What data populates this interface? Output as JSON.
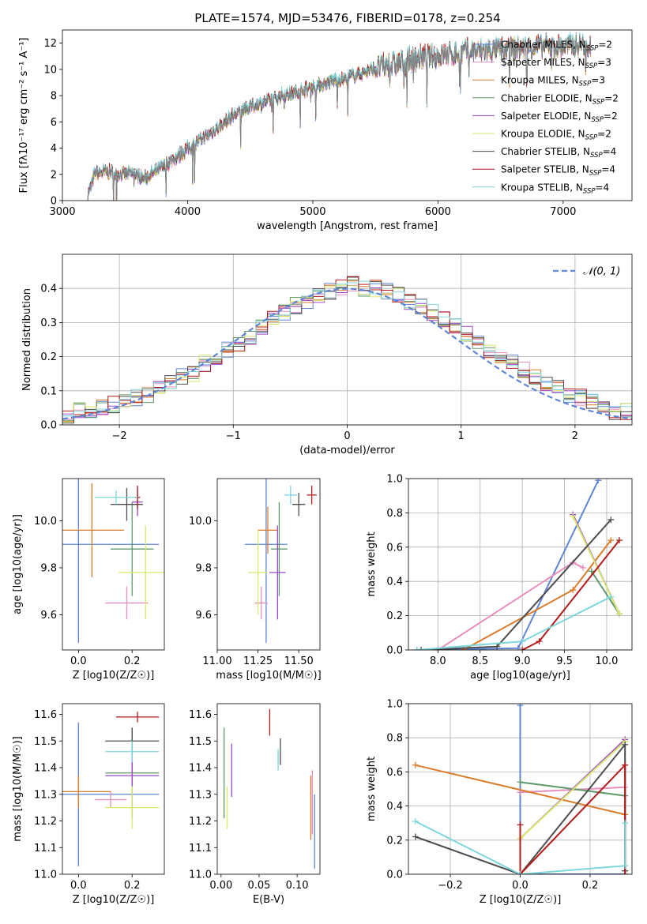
{
  "chart_data": [
    {
      "type": "line",
      "title": "PLATE=1574, MJD=53476, FIBERID=0178, z=0.254",
      "xlabel": "wavelength [Angstrom, rest frame]",
      "ylabel": "Flux [fλ10⁻¹⁷ erg cm⁻² s⁻¹ A⁻¹]",
      "xlim": [
        3000,
        7550
      ],
      "ylim": [
        0,
        13
      ],
      "xticks": [
        3000,
        4000,
        5000,
        6000,
        7000
      ],
      "yticks": [
        0,
        2,
        4,
        6,
        8,
        10,
        12
      ],
      "grid": false,
      "legend_position": "upper-right",
      "spectrum_anchor_x": [
        3200,
        3260,
        3350,
        3450,
        3550,
        3650,
        3750,
        3860,
        3950,
        4050,
        4150,
        4250,
        4350,
        4450,
        4550,
        4650,
        4750,
        4850,
        4950,
        5050,
        5150,
        5250,
        5350,
        5450,
        5550,
        5650,
        5750,
        5850,
        5950,
        6050,
        6150,
        6250,
        6350,
        6450,
        6550,
        6650,
        6750,
        6850,
        6950,
        7050,
        7150,
        7220
      ],
      "spectrum_anchor_y": [
        0.3,
        2.1,
        2.2,
        2.0,
        2.1,
        1.7,
        2.2,
        3.0,
        3.6,
        4.3,
        4.9,
        5.6,
        6.4,
        6.9,
        7.3,
        7.6,
        8.0,
        8.2,
        8.5,
        8.8,
        9.1,
        9.3,
        9.6,
        9.9,
        10.2,
        10.4,
        10.7,
        10.9,
        11.0,
        11.1,
        11.2,
        11.4,
        11.4,
        11.5,
        11.6,
        11.6,
        11.7,
        11.8,
        11.7,
        11.8,
        11.9,
        11.8
      ],
      "series": [
        {
          "name": "Chabrier MILES, N",
          "sub": "SSP",
          "suffix": "=2",
          "color": "#5f86d4"
        },
        {
          "name": "Salpeter MILES, N",
          "sub": "SSP",
          "suffix": "=3",
          "color": "#e88fbd"
        },
        {
          "name": "Kroupa MILES, N",
          "sub": "SSP",
          "suffix": "=3",
          "color": "#db7c2a"
        },
        {
          "name": "Chabrier ELODIE, N",
          "sub": "SSP",
          "suffix": "=2",
          "color": "#5f9b6a"
        },
        {
          "name": "Salpeter ELODIE, N",
          "sub": "SSP",
          "suffix": "=2",
          "color": "#9d48c9"
        },
        {
          "name": "Kroupa ELODIE, N",
          "sub": "SSP",
          "suffix": "=2",
          "color": "#d8e86a"
        },
        {
          "name": "Chabrier STELIB, N",
          "sub": "SSP",
          "suffix": "=4",
          "color": "#4d4d4d"
        },
        {
          "name": "Salpeter STELIB, N",
          "sub": "SSP",
          "suffix": "=4",
          "color": "#b31b1b"
        },
        {
          "name": "Kroupa STELIB, N",
          "sub": "SSP",
          "suffix": "=4",
          "color": "#7fd6dd"
        }
      ],
      "data_color": "#808080"
    },
    {
      "type": "bar",
      "xlabel": "(data-model)/error",
      "ylabel": "Normed distribution",
      "xlim": [
        -2.5,
        2.5
      ],
      "ylim": [
        0,
        0.5
      ],
      "xticks": [
        -2,
        -1,
        0,
        1,
        2
      ],
      "yticks": [
        0.0,
        0.1,
        0.2,
        0.3,
        0.4
      ],
      "grid": true,
      "legend_position": "upper-right",
      "legend_label": "𝒩(0, 1)",
      "gaussian": {
        "mean": 0,
        "sigma": 1,
        "color": "#5f86d4"
      },
      "bin_width": 0.1,
      "histogram_tops": [
        0.03,
        0.04,
        0.04,
        0.05,
        0.06,
        0.07,
        0.08,
        0.09,
        0.11,
        0.12,
        0.14,
        0.15,
        0.18,
        0.2,
        0.22,
        0.24,
        0.26,
        0.29,
        0.31,
        0.33,
        0.35,
        0.36,
        0.38,
        0.39,
        0.4,
        0.41,
        0.4,
        0.4,
        0.39,
        0.38,
        0.36,
        0.35,
        0.33,
        0.31,
        0.29,
        0.27,
        0.24,
        0.22,
        0.2,
        0.18,
        0.16,
        0.14,
        0.12,
        0.11,
        0.09,
        0.08,
        0.07,
        0.05,
        0.04,
        0.04
      ]
    },
    {
      "type": "scatter",
      "xlabel": "Z [log10(Z/Z☉)]",
      "ylabel": "age  [log10(age/yr)]",
      "xlim": [
        -0.06,
        0.32
      ],
      "ylim": [
        9.45,
        10.18
      ],
      "xticks": [
        0.0,
        0.2
      ],
      "yticks": [
        9.6,
        9.8,
        10.0
      ],
      "points": [
        {
          "x": 0.0,
          "y": 9.9,
          "xerr": 0.3,
          "yerr": 0.42,
          "color": "#5f86d4"
        },
        {
          "x": 0.18,
          "y": 9.65,
          "xerr": 0.08,
          "yerr": 0.07,
          "color": "#e88fbd"
        },
        {
          "x": 0.05,
          "y": 9.96,
          "xerr": 0.12,
          "yerr": 0.2,
          "color": "#db7c2a"
        },
        {
          "x": 0.2,
          "y": 9.88,
          "xerr": 0.08,
          "yerr": 0.2,
          "color": "#5f9b6a"
        },
        {
          "x": 0.22,
          "y": 10.08,
          "xerr": 0.02,
          "yerr": 0.06,
          "color": "#9d48c9"
        },
        {
          "x": 0.25,
          "y": 9.78,
          "xerr": 0.1,
          "yerr": 0.2,
          "color": "#d8e86a"
        },
        {
          "x": 0.18,
          "y": 10.07,
          "xerr": 0.06,
          "yerr": 0.07,
          "color": "#4d4d4d"
        },
        {
          "x": 0.22,
          "y": 10.1,
          "xerr": 0.01,
          "yerr": 0.05,
          "color": "#b31b1b"
        },
        {
          "x": 0.14,
          "y": 10.1,
          "xerr": 0.08,
          "yerr": 0.03,
          "color": "#7fd6dd"
        }
      ]
    },
    {
      "type": "scatter",
      "xlabel": "mass [log10(M/M☉)]",
      "ylabel": "",
      "xlim": [
        11.0,
        11.63
      ],
      "ylim": [
        9.45,
        10.18
      ],
      "xticks": [
        11.0,
        11.25,
        11.5
      ],
      "yticks": [
        9.6,
        9.8,
        10.0
      ],
      "points": [
        {
          "x": 11.3,
          "y": 9.9,
          "xerr": 0.13,
          "yerr": 0.42,
          "color": "#5f86d4"
        },
        {
          "x": 11.27,
          "y": 9.65,
          "xerr": 0.04,
          "yerr": 0.07,
          "color": "#e88fbd"
        },
        {
          "x": 11.31,
          "y": 9.96,
          "xerr": 0.06,
          "yerr": 0.1,
          "color": "#db7c2a"
        },
        {
          "x": 11.38,
          "y": 9.88,
          "xerr": 0.05,
          "yerr": 0.2,
          "color": "#5f9b6a"
        },
        {
          "x": 11.37,
          "y": 9.78,
          "xerr": 0.05,
          "yerr": 0.2,
          "color": "#9d48c9"
        },
        {
          "x": 11.25,
          "y": 9.78,
          "xerr": 0.06,
          "yerr": 0.18,
          "color": "#d8e86a"
        },
        {
          "x": 11.5,
          "y": 10.07,
          "xerr": 0.04,
          "yerr": 0.05,
          "color": "#4d4d4d"
        },
        {
          "x": 11.58,
          "y": 10.11,
          "xerr": 0.03,
          "yerr": 0.04,
          "color": "#b31b1b"
        },
        {
          "x": 11.45,
          "y": 10.11,
          "xerr": 0.04,
          "yerr": 0.04,
          "color": "#7fd6dd"
        }
      ]
    },
    {
      "type": "line",
      "xlabel": "age  [log10(age/yr)]",
      "ylabel": "mass weight",
      "xlim": [
        7.65,
        10.3
      ],
      "ylim": [
        0.0,
        1.0
      ],
      "xticks": [
        8.0,
        8.5,
        9.0,
        9.5,
        10.0
      ],
      "yticks": [
        0.0,
        0.2,
        0.4,
        0.6,
        0.8,
        1.0
      ],
      "grid": true,
      "series": [
        {
          "color": "#5f86d4",
          "x": [
            7.75,
            8.95,
            9.9
          ],
          "y": [
            0.0,
            0.01,
            0.99
          ]
        },
        {
          "color": "#e88fbd",
          "x": [
            8.0,
            9.6,
            9.72
          ],
          "y": [
            0.0,
            0.51,
            0.48
          ]
        },
        {
          "color": "#db7c2a",
          "x": [
            8.3,
            9.6,
            10.05
          ],
          "y": [
            0.0,
            0.35,
            0.64
          ]
        },
        {
          "color": "#5f9b6a",
          "x": [
            9.82,
            10.15
          ],
          "y": [
            0.46,
            0.21
          ]
        },
        {
          "color": "#9d48c9",
          "x": [
            9.6,
            10.15
          ],
          "y": [
            0.79,
            0.21
          ]
        },
        {
          "color": "#d8e86a",
          "x": [
            9.6,
            10.15
          ],
          "y": [
            0.78,
            0.21
          ]
        },
        {
          "color": "#4d4d4d",
          "x": [
            7.8,
            8.7,
            10.05
          ],
          "y": [
            0.0,
            0.02,
            0.76
          ]
        },
        {
          "color": "#b31b1b",
          "x": [
            9.0,
            9.2,
            10.15
          ],
          "y": [
            0.0,
            0.05,
            0.64
          ]
        },
        {
          "color": "#7fd6dd",
          "x": [
            7.75,
            9.0,
            10.05
          ],
          "y": [
            0.0,
            0.05,
            0.31
          ]
        }
      ]
    },
    {
      "type": "scatter",
      "xlabel": "Z [log10(Z/Z☉)]",
      "ylabel": "mass [log10(M/M☉)]",
      "xlim": [
        -0.06,
        0.32
      ],
      "ylim": [
        11.0,
        11.64
      ],
      "xticks": [
        0.0,
        0.2
      ],
      "yticks": [
        11.0,
        11.1,
        11.2,
        11.3,
        11.4,
        11.5,
        11.6
      ],
      "points": [
        {
          "x": 0.0,
          "y": 11.3,
          "xerr": 0.3,
          "yerr": 0.27,
          "color": "#5f86d4"
        },
        {
          "x": 0.12,
          "y": 11.28,
          "xerr": 0.06,
          "yerr": 0.03,
          "color": "#e88fbd"
        },
        {
          "x": 0.0,
          "y": 11.31,
          "xerr": 0.12,
          "yerr": 0.06,
          "color": "#db7c2a"
        },
        {
          "x": 0.2,
          "y": 11.38,
          "xerr": 0.1,
          "yerr": 0.17,
          "color": "#5f9b6a"
        },
        {
          "x": 0.2,
          "y": 11.37,
          "xerr": 0.1,
          "yerr": 0.12,
          "color": "#9d48c9"
        },
        {
          "x": 0.2,
          "y": 11.25,
          "xerr": 0.1,
          "yerr": 0.08,
          "color": "#d8e86a"
        },
        {
          "x": 0.2,
          "y": 11.5,
          "xerr": 0.1,
          "yerr": 0.05,
          "color": "#4d4d4d"
        },
        {
          "x": 0.22,
          "y": 11.59,
          "xerr": 0.08,
          "yerr": 0.02,
          "color": "#b31b1b"
        },
        {
          "x": 0.2,
          "y": 11.46,
          "xerr": 0.1,
          "yerr": 0.04,
          "color": "#7fd6dd"
        }
      ]
    },
    {
      "type": "scatter",
      "xlabel": "E(B-V)",
      "ylabel": "",
      "xlim": [
        -0.005,
        0.13
      ],
      "ylim": [
        11.0,
        11.64
      ],
      "xticks": [
        0.0,
        0.05,
        0.1
      ],
      "xtick_labels": [
        "0.00",
        "0.05",
        "0.10"
      ],
      "yticks": [
        11.0,
        11.1,
        11.2,
        11.3,
        11.4,
        11.5,
        11.6
      ],
      "points": [
        {
          "x": 0.123,
          "y": 11.16,
          "xerr": 0,
          "yerr": 0.14,
          "color": "#5f86d4"
        },
        {
          "x": 0.12,
          "y": 11.27,
          "xerr": 0,
          "yerr": 0.12,
          "color": "#e88fbd"
        },
        {
          "x": 0.118,
          "y": 11.25,
          "xerr": 0,
          "yerr": 0.12,
          "color": "#db7c2a"
        },
        {
          "x": 0.004,
          "y": 11.38,
          "xerr": 0,
          "yerr": 0.17,
          "color": "#5f9b6a"
        },
        {
          "x": 0.014,
          "y": 11.39,
          "xerr": 0,
          "yerr": 0.1,
          "color": "#9d48c9"
        },
        {
          "x": 0.008,
          "y": 11.25,
          "xerr": 0,
          "yerr": 0.08,
          "color": "#d8e86a"
        },
        {
          "x": 0.078,
          "y": 11.46,
          "xerr": 0,
          "yerr": 0.05,
          "color": "#4d4d4d"
        },
        {
          "x": 0.064,
          "y": 11.57,
          "xerr": 0,
          "yerr": 0.05,
          "color": "#b31b1b"
        },
        {
          "x": 0.075,
          "y": 11.43,
          "xerr": 0,
          "yerr": 0.04,
          "color": "#7fd6dd"
        }
      ]
    },
    {
      "type": "line",
      "xlabel": "Z [log10(Z/Z☉)]",
      "ylabel": "mass weight",
      "xlim": [
        -0.32,
        0.32
      ],
      "ylim": [
        0.0,
        1.0
      ],
      "xticks": [
        -0.2,
        0.0,
        0.2
      ],
      "yticks": [
        0.0,
        0.2,
        0.4,
        0.6,
        0.8,
        1.0
      ],
      "grid": true,
      "series": [
        {
          "color": "#5f86d4",
          "x": [
            0.0,
            0.0,
            0.3,
            0.3
          ],
          "y": [
            0.99,
            0.0,
            0.0,
            0.64
          ]
        },
        {
          "color": "#e88fbd",
          "x": [
            0.0,
            0.3
          ],
          "y": [
            0.48,
            0.51
          ]
        },
        {
          "color": "#db7c2a",
          "x": [
            -0.3,
            0.3
          ],
          "y": [
            0.64,
            0.35
          ]
        },
        {
          "color": "#5f9b6a",
          "x": [
            0.0,
            0.3
          ],
          "y": [
            0.54,
            0.46
          ]
        },
        {
          "color": "#9d48c9",
          "x": [
            0.0,
            0.3
          ],
          "y": [
            0.21,
            0.79
          ]
        },
        {
          "color": "#d8e86a",
          "x": [
            0.0,
            0.3
          ],
          "y": [
            0.21,
            0.78
          ]
        },
        {
          "color": "#4d4d4d",
          "x": [
            -0.3,
            0.0,
            0.3,
            0.3
          ],
          "y": [
            0.22,
            0.0,
            0.76,
            0.02
          ]
        },
        {
          "color": "#b31b1b",
          "x": [
            0.0,
            0.0,
            0.3,
            0.3
          ],
          "y": [
            0.29,
            0.0,
            0.64,
            0.0
          ]
        },
        {
          "color": "#7fd6dd",
          "x": [
            -0.3,
            0.0,
            0.3,
            0.3
          ],
          "y": [
            0.31,
            0.0,
            0.05,
            0.3
          ]
        }
      ]
    }
  ]
}
